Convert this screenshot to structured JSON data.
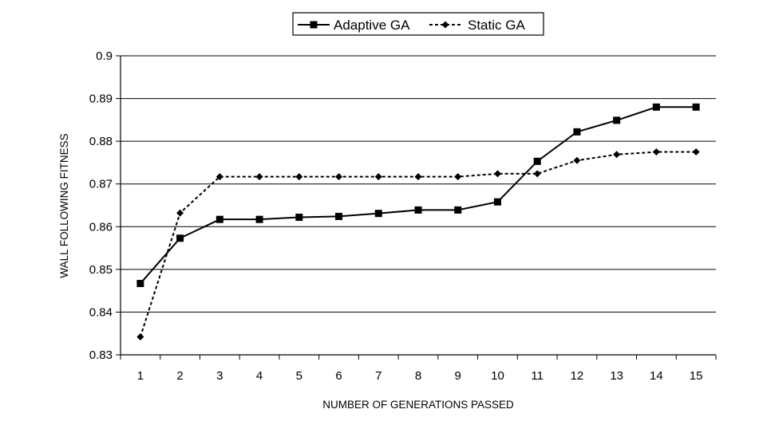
{
  "chart_data": {
    "type": "line",
    "title": "",
    "xlabel": "NUMBER OF GENERATIONS PASSED",
    "ylabel": "WALL FOLLOWING FITNESS",
    "categories": [
      "1",
      "2",
      "3",
      "4",
      "5",
      "6",
      "7",
      "8",
      "9",
      "10",
      "11",
      "12",
      "13",
      "14",
      "15"
    ],
    "ylim": [
      0.83,
      0.9
    ],
    "yticks": [
      "0.83",
      "0.84",
      "0.85",
      "0.86",
      "0.87",
      "0.88",
      "0.89",
      "0.9"
    ],
    "grid": "horizontal",
    "legend_position": "top",
    "series": [
      {
        "name": "Adaptive GA",
        "style": "solid",
        "marker": "square",
        "color": "#000000",
        "values": [
          0.8467,
          0.8573,
          0.8617,
          0.8617,
          0.8622,
          0.8624,
          0.8631,
          0.8639,
          0.8639,
          0.8658,
          0.8753,
          0.8822,
          0.8849,
          0.888,
          0.888
        ]
      },
      {
        "name": "Static GA",
        "style": "dotted",
        "marker": "diamond",
        "color": "#000000",
        "values": [
          0.8342,
          0.8632,
          0.8717,
          0.8717,
          0.8717,
          0.8717,
          0.8717,
          0.8717,
          0.8717,
          0.8724,
          0.8724,
          0.8755,
          0.8769,
          0.8775,
          0.8775
        ]
      }
    ]
  }
}
